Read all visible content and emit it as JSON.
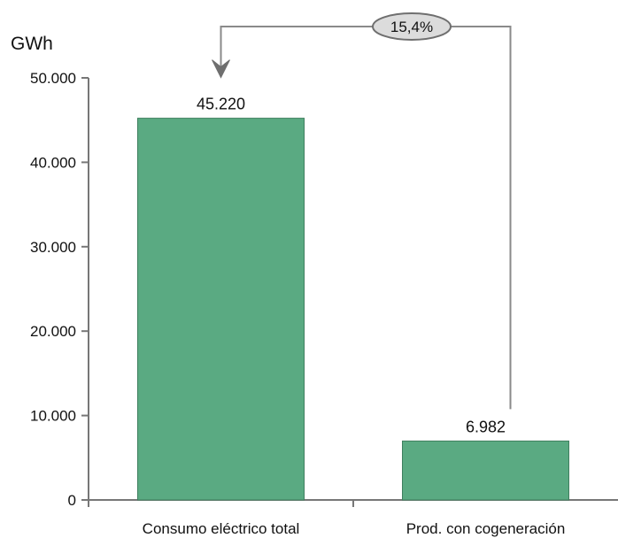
{
  "chart_data": {
    "type": "bar",
    "ylabel": "GWh",
    "categories": [
      "Consumo eléctrico total",
      "Prod. con cogeneración"
    ],
    "values": [
      45220,
      6982
    ],
    "value_labels": [
      "45.220",
      "6.982"
    ],
    "ylim": [
      0,
      50000
    ],
    "yticks": [
      0,
      10000,
      20000,
      30000,
      40000,
      50000
    ],
    "ytick_labels": [
      "0",
      "10.000",
      "20.000",
      "30.000",
      "40.000",
      "50.000"
    ],
    "grid": false,
    "bar_color": "#5aaa82",
    "annotation": {
      "text": "15,4%",
      "from_category": "Prod. con cogeneración",
      "to_category": "Consumo eléctrico total"
    }
  }
}
